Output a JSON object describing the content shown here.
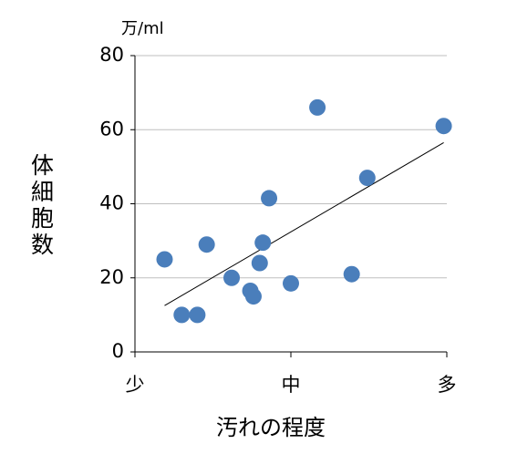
{
  "chart_data": {
    "type": "scatter",
    "y_unit": "万/ml",
    "ylabel": "体細胞数",
    "xlabel": "汚れの程度",
    "xlim": [
      0,
      2
    ],
    "xticks": [
      {
        "value": 0,
        "label": "少"
      },
      {
        "value": 1,
        "label": "中"
      },
      {
        "value": 2,
        "label": "多"
      }
    ],
    "ylim": [
      0,
      80
    ],
    "yticks": [
      0,
      20,
      40,
      60,
      80
    ],
    "grid": true,
    "series": [
      {
        "color": "#4a7ebb",
        "x": [
          0.19,
          0.3,
          0.4,
          0.46,
          0.62,
          0.74,
          0.76,
          0.8,
          0.82,
          0.86,
          1.0,
          1.17,
          1.39,
          1.49,
          1.98
        ],
        "values": [
          25,
          10,
          10,
          29,
          20,
          16.5,
          15,
          24,
          29.5,
          41.5,
          18.5,
          66,
          21,
          47,
          61
        ]
      }
    ],
    "trendline": {
      "color": "#000000",
      "x": [
        0.19,
        1.98
      ],
      "values": [
        12.5,
        56.5
      ]
    }
  }
}
